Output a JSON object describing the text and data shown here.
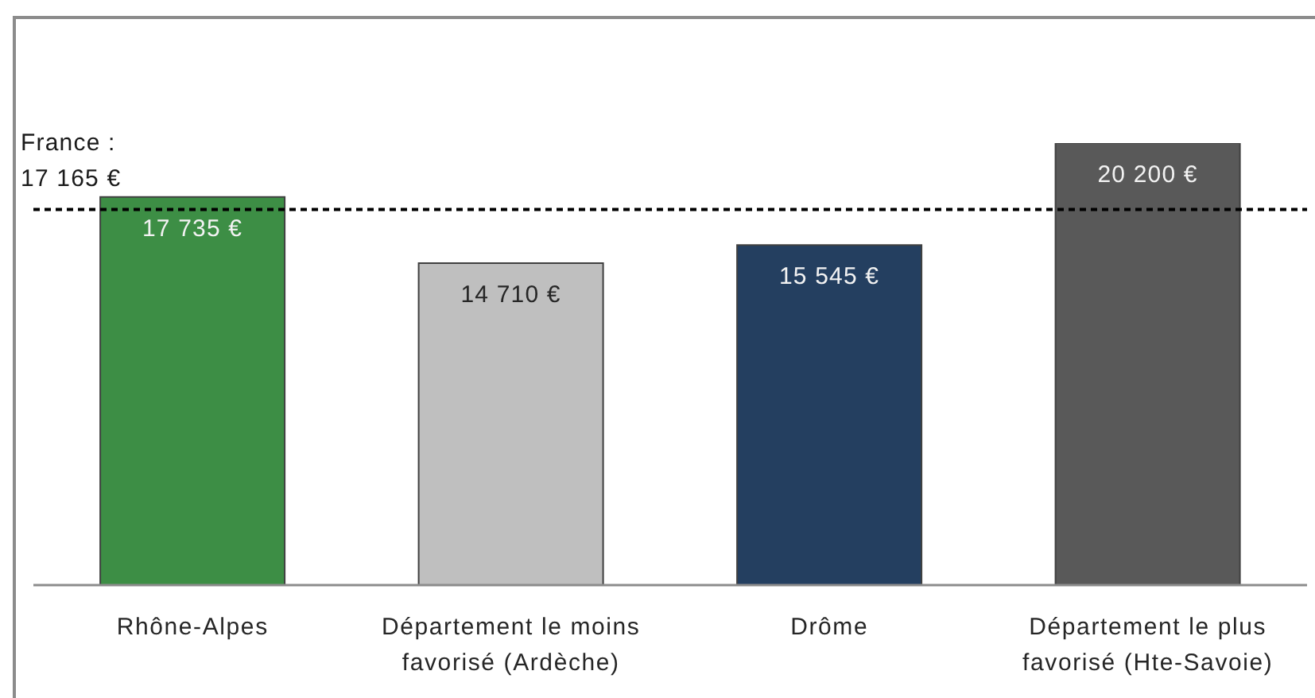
{
  "chart_data": {
    "type": "bar",
    "categories": [
      "Rhône-Alpes",
      "Département le moins favorisé (Ardèche)",
      "Drôme",
      "Département le plus favorisé (Hte-Savoie)"
    ],
    "values": [
      17735,
      14710,
      15545,
      20200
    ],
    "colors": [
      "#3d8e45",
      "#bfbfbf",
      "#243f60",
      "#595959"
    ],
    "value_labels": [
      "17 735 €",
      "14 710 €",
      "15 545 €",
      "20 200 €"
    ],
    "ref_lines": [
      {
        "axis": "y",
        "value": 17165,
        "label": "France :\n17 165 €",
        "color": "#000000",
        "line_style": "dotted"
      }
    ],
    "grid": false,
    "legend": false
  }
}
